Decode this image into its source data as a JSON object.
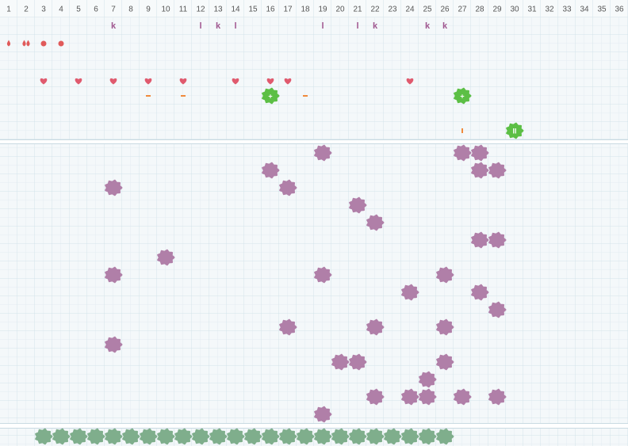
{
  "columns": [
    1,
    2,
    3,
    4,
    5,
    6,
    7,
    8,
    9,
    10,
    11,
    12,
    13,
    14,
    15,
    16,
    17,
    18,
    19,
    20,
    21,
    22,
    23,
    24,
    25,
    26,
    27,
    28,
    29,
    30,
    31,
    32,
    33,
    34,
    35,
    36
  ],
  "top": {
    "letters": [
      {
        "column": 7,
        "text": "k"
      },
      {
        "column": 12,
        "text": "l"
      },
      {
        "column": 13,
        "text": "k"
      },
      {
        "column": 14,
        "text": "l"
      },
      {
        "column": 19,
        "text": "l"
      },
      {
        "column": 21,
        "text": "l"
      },
      {
        "column": 22,
        "text": "k"
      },
      {
        "column": 25,
        "text": "k"
      },
      {
        "column": 26,
        "text": "k"
      }
    ],
    "drops": [
      {
        "column": 1,
        "count": 1
      },
      {
        "column": 2,
        "count": 2
      }
    ],
    "dots": [
      3,
      4
    ],
    "hearts": [
      3,
      5,
      7,
      9,
      11,
      14,
      16,
      17,
      24
    ],
    "dashes": [
      9,
      11,
      18
    ],
    "green_tiles": [
      {
        "column": 16,
        "row": 4,
        "text": "+"
      },
      {
        "column": 27,
        "row": 4,
        "text": "+"
      },
      {
        "column": 30,
        "row": 6,
        "text": "II"
      }
    ],
    "ticks": [
      27
    ]
  },
  "middle": [
    [
      19,
      27,
      28
    ],
    [
      16,
      28,
      29
    ],
    [
      7,
      17
    ],
    [
      21
    ],
    [
      22
    ],
    [
      28,
      29
    ],
    [
      10
    ],
    [
      7,
      19,
      26
    ],
    [
      24,
      28
    ],
    [
      29
    ],
    [
      17,
      22,
      26
    ],
    [
      7
    ],
    [
      20,
      21,
      26
    ],
    [
      25
    ],
    [
      22,
      24,
      25,
      27,
      29
    ],
    [
      19
    ]
  ],
  "bottom": [
    3,
    4,
    5,
    6,
    7,
    8,
    9,
    10,
    11,
    12,
    13,
    14,
    15,
    16,
    17,
    18,
    19,
    20,
    21,
    22,
    23,
    24,
    25,
    26
  ]
}
